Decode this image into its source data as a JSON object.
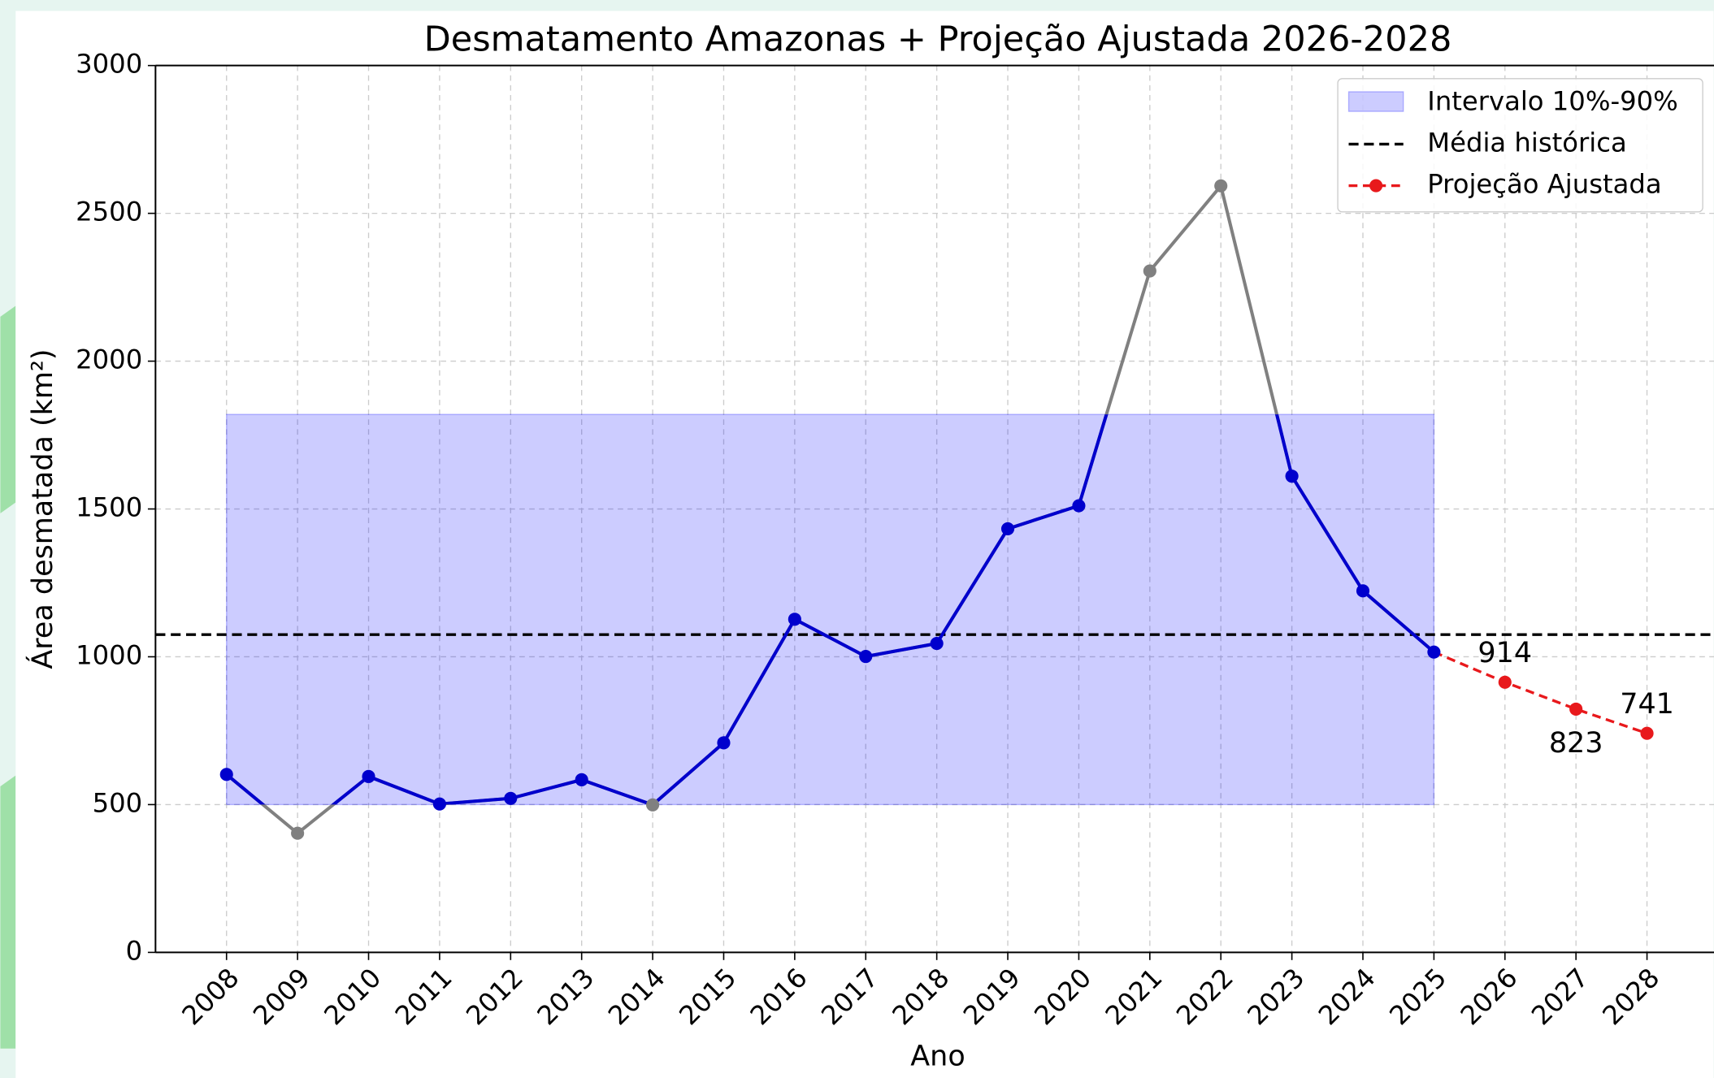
{
  "chart_data": {
    "type": "line",
    "title": "Desmatamento Amazonas + Projeção Ajustada 2026-2028",
    "x_label": "Ano",
    "y_label": "Área desmatada (km²)",
    "xlim": [
      2007,
      2029
    ],
    "ylim": [
      0,
      3000
    ],
    "xticks": [
      2008,
      2009,
      2010,
      2011,
      2012,
      2013,
      2014,
      2015,
      2016,
      2017,
      2018,
      2019,
      2020,
      2021,
      2022,
      2023,
      2024,
      2025,
      2026,
      2027,
      2028
    ],
    "yticks": [
      0,
      500,
      1000,
      1500,
      2000,
      2500,
      3000
    ],
    "grid": true,
    "legend": "upper right",
    "band": {
      "name": "Intervalo 10%-90%",
      "x": [
        2008,
        2025
      ],
      "low": 500,
      "high": 1820,
      "color": "#0000ff"
    },
    "mean": {
      "name": "Média histórica",
      "value": 1075,
      "color": "#000000"
    },
    "series": [
      {
        "x": [
          2008,
          2009,
          2010,
          2011,
          2012,
          2013,
          2014,
          2015,
          2016,
          2017,
          2018,
          2019,
          2020,
          2021,
          2022,
          2023,
          2024,
          2025
        ],
        "values": [
          602,
          403,
          595,
          502,
          521,
          584,
          499,
          709,
          1127,
          1001,
          1045,
          1433,
          1511,
          2305,
          2593,
          1611,
          1223,
          1016
        ],
        "color": "#0000cd",
        "out_color": "#808080"
      },
      {
        "name": "Projeção Ajustada",
        "color": "#e8191c",
        "style": "dashed",
        "x": [
          2026,
          2027,
          2028
        ],
        "values": [
          914,
          823,
          741
        ]
      }
    ]
  }
}
